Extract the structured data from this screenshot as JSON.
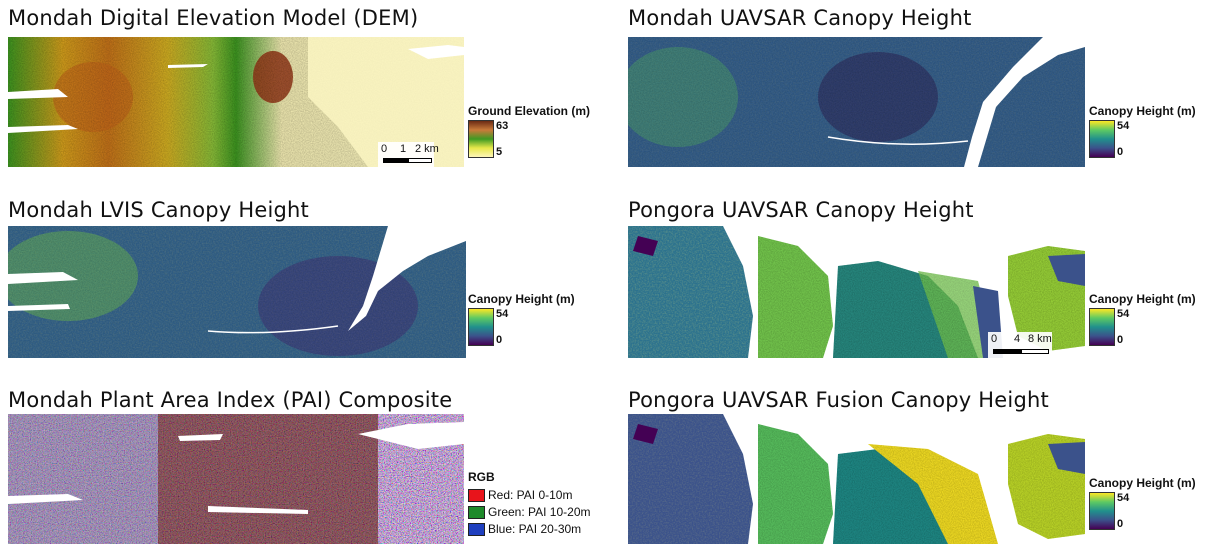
{
  "panels": {
    "dem": {
      "title": "Mondah Digital Elevation Model (DEM)",
      "legend_title": "Ground Elevation (m)",
      "max": "63",
      "min": "5",
      "scalebar": {
        "t0": "0",
        "t1": "1",
        "t2": "2 km"
      },
      "colors": {
        "low": "#fdf5b8",
        "mid": "#3e9a1e",
        "high": "#9a3a18"
      }
    },
    "uavsar_mondah": {
      "title": "Mondah UAVSAR Canopy Height",
      "legend_title": "Canopy Height (m)",
      "max": "54",
      "min": "0"
    },
    "lvis": {
      "title": "Mondah LVIS Canopy Height",
      "legend_title": "Canopy Height (m)",
      "max": "54",
      "min": "0"
    },
    "pongora_uavsar": {
      "title": "Pongora UAVSAR Canopy Height",
      "legend_title": "Canopy Height (m)",
      "max": "54",
      "min": "0",
      "scalebar": {
        "t0": "0",
        "t1": "4",
        "t2": "8 km"
      }
    },
    "pai": {
      "title": "Mondah Plant Area Index (PAI) Composite",
      "legend_title": "RGB",
      "items": [
        {
          "label": "Red: PAI 0-10m",
          "color": "#e8141b"
        },
        {
          "label": "Green: PAI 10-20m",
          "color": "#1e8a2a"
        },
        {
          "label": "Blue: PAI 20-30m",
          "color": "#1f3fbf"
        }
      ]
    },
    "pongora_fusion": {
      "title": "Pongora UAVSAR Fusion Canopy Height",
      "legend_title": "Canopy Height (m)",
      "max": "54",
      "min": "0"
    }
  },
  "colormap": {
    "viridis_low": "#440154",
    "viridis_mid": "#21908c",
    "viridis_high": "#fde725"
  }
}
